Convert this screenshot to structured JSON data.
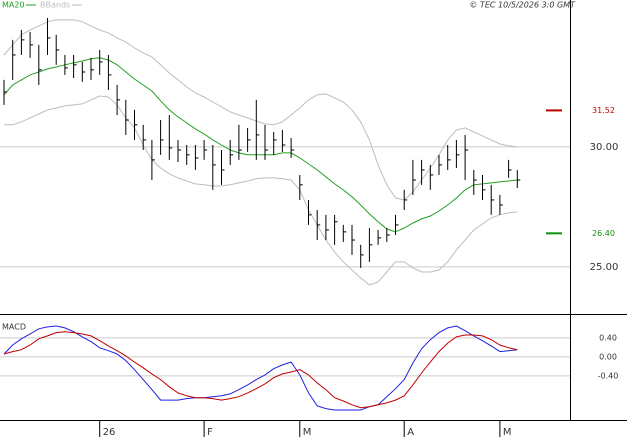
{
  "chart_data": [
    {
      "type": "ohlc",
      "credit": "© TEC 10/5/2026 3:0 GMT",
      "categories": [
        null,
        null,
        null,
        null,
        null,
        null,
        null,
        null,
        null,
        null,
        null,
        "26",
        null,
        null,
        null,
        null,
        null,
        null,
        null,
        null,
        null,
        null,
        null,
        "F",
        null,
        null,
        null,
        null,
        null,
        null,
        null,
        null,
        null,
        null,
        "M",
        null,
        null,
        null,
        null,
        null,
        null,
        null,
        null,
        null,
        null,
        null,
        "A",
        null,
        null,
        null,
        null,
        null,
        null,
        null,
        null,
        null,
        null,
        "M",
        null,
        null
      ],
      "high": [
        32.79,
        34.46,
        34.87,
        34.79,
        34.25,
        35.37,
        34.67,
        33.83,
        33.83,
        33.54,
        33.71,
        34.04,
        33.83,
        32.58,
        31.96,
        31.54,
        30.92,
        30.29,
        31.12,
        31.33,
        30.29,
        30.08,
        30.08,
        30.29,
        30.08,
        29.87,
        30.29,
        30.92,
        30.79,
        31.96,
        30.92,
        30.62,
        30.71,
        30.37,
        28.83,
        27.79,
        27.37,
        27.17,
        27.17,
        26.75,
        26.75,
        25.92,
        26.62,
        26.54,
        26.62,
        27.17,
        28.21,
        29.46,
        29.46,
        29.25,
        29.67,
        30.08,
        30.29,
        30.5,
        29.04,
        28.83,
        28.42,
        28.0,
        29.46,
        29.04
      ],
      "low": [
        31.75,
        32.79,
        33.83,
        33.71,
        32.58,
        33.83,
        33.42,
        33.0,
        32.87,
        32.71,
        32.79,
        33.0,
        32.37,
        31.33,
        30.5,
        30.29,
        29.87,
        28.62,
        29.67,
        29.46,
        29.37,
        29.25,
        29.04,
        29.46,
        28.21,
        28.42,
        29.25,
        29.46,
        29.79,
        29.46,
        29.46,
        29.67,
        29.79,
        29.54,
        27.79,
        26.75,
        26.12,
        26.12,
        25.92,
        26.04,
        25.5,
        24.96,
        25.21,
        25.92,
        26.04,
        26.33,
        27.37,
        28.0,
        28.42,
        28.21,
        28.83,
        29.04,
        29.12,
        28.62,
        28.0,
        27.79,
        27.17,
        27.17,
        28.71,
        28.29
      ],
      "close": [
        32.29,
        33.83,
        34.46,
        34.25,
        33.21,
        34.54,
        34.04,
        33.29,
        33.42,
        33.12,
        33.21,
        33.54,
        33.0,
        31.96,
        31.12,
        30.92,
        30.29,
        29.46,
        30.29,
        29.96,
        29.87,
        29.67,
        29.54,
        29.87,
        29.25,
        29.04,
        29.67,
        29.87,
        30.29,
        30.5,
        29.87,
        30.29,
        30.08,
        29.87,
        28.42,
        27.17,
        26.75,
        26.54,
        26.88,
        26.46,
        26.12,
        25.5,
        25.92,
        26.21,
        26.33,
        26.75,
        27.79,
        28.62,
        29.04,
        28.83,
        29.25,
        29.46,
        29.67,
        29.87,
        28.62,
        28.21,
        27.79,
        27.58,
        29.04,
        28.62
      ],
      "color": "#000000",
      "series": [
        {
          "name": "MA20",
          "color": "#22a022",
          "values": [
            32.17,
            32.58,
            32.79,
            33.0,
            33.12,
            33.25,
            33.33,
            33.42,
            33.5,
            33.58,
            33.67,
            33.71,
            33.62,
            33.42,
            33.12,
            32.83,
            32.58,
            32.33,
            31.92,
            31.54,
            31.25,
            31.0,
            30.75,
            30.54,
            30.29,
            30.08,
            29.87,
            29.75,
            29.67,
            29.67,
            29.67,
            29.67,
            29.75,
            29.75,
            29.54,
            29.29,
            29.04,
            28.75,
            28.46,
            28.21,
            27.92,
            27.58,
            27.21,
            26.88,
            26.58,
            26.46,
            26.62,
            26.83,
            27.0,
            27.12,
            27.33,
            27.58,
            27.87,
            28.21,
            28.42,
            28.46,
            28.5,
            28.54,
            28.58,
            28.62
          ]
        }
      ],
      "bands": {
        "name": "BBands",
        "color": "#bdbdbd",
        "upper": [
          33.83,
          34.25,
          34.67,
          34.87,
          35.04,
          35.21,
          35.29,
          35.29,
          35.29,
          35.21,
          35.04,
          34.87,
          34.75,
          34.54,
          34.37,
          34.12,
          33.92,
          33.75,
          33.42,
          33.08,
          32.79,
          32.5,
          32.25,
          32.08,
          31.87,
          31.67,
          31.46,
          31.33,
          31.21,
          31.08,
          30.96,
          30.92,
          31.04,
          31.33,
          31.62,
          31.96,
          32.17,
          32.21,
          32.04,
          31.87,
          31.54,
          31.04,
          30.29,
          29.25,
          28.42,
          27.87,
          27.79,
          28.12,
          28.62,
          29.12,
          29.67,
          30.29,
          30.71,
          30.79,
          30.62,
          30.46,
          30.29,
          30.12,
          30.04,
          30.0
        ],
        "lower": [
          30.92,
          30.92,
          31.04,
          31.21,
          31.37,
          31.54,
          31.62,
          31.71,
          31.75,
          31.79,
          31.96,
          32.12,
          32.08,
          31.75,
          31.21,
          30.79,
          30.08,
          29.46,
          29.12,
          28.88,
          28.71,
          28.58,
          28.46,
          28.42,
          28.37,
          28.37,
          28.42,
          28.5,
          28.58,
          28.67,
          28.71,
          28.71,
          28.67,
          28.62,
          28.21,
          27.37,
          26.75,
          26.12,
          25.62,
          25.21,
          24.87,
          24.54,
          24.25,
          24.37,
          24.79,
          25.21,
          25.21,
          24.96,
          24.79,
          24.79,
          24.87,
          25.21,
          25.71,
          26.12,
          26.54,
          26.79,
          27.04,
          27.17,
          27.25,
          27.29
        ]
      },
      "annotations": [
        {
          "value": 31.52,
          "label": "31.52",
          "color": "#c00000"
        },
        {
          "value": 26.4,
          "label": "26.40",
          "color": "#109010"
        }
      ],
      "ylim": [
        23.08,
        36.12
      ],
      "yticks": [
        {
          "value": 25,
          "label": "25.00"
        },
        {
          "value": 30,
          "label": "30.00"
        }
      ],
      "grid": true
    },
    {
      "type": "macd",
      "title": "MACD",
      "series": [
        {
          "color": "#2020e0",
          "values": [
            0.06,
            0.25,
            0.38,
            0.48,
            0.59,
            0.63,
            0.65,
            0.61,
            0.53,
            0.42,
            0.32,
            0.19,
            0.13,
            0.06,
            -0.08,
            -0.27,
            -0.48,
            -0.69,
            -0.91,
            -0.91,
            -0.91,
            -0.88,
            -0.86,
            -0.86,
            -0.84,
            -0.82,
            -0.78,
            -0.69,
            -0.59,
            -0.48,
            -0.38,
            -0.25,
            -0.17,
            -0.11,
            -0.38,
            -0.76,
            -1.03,
            -1.09,
            -1.12,
            -1.12,
            -1.12,
            -1.12,
            -1.05,
            -1.01,
            -0.84,
            -0.67,
            -0.48,
            -0.13,
            0.17,
            0.36,
            0.51,
            0.61,
            0.65,
            0.55,
            0.44,
            0.34,
            0.23,
            0.11,
            0.13,
            0.15
          ]
        },
        {
          "color": "#c00000",
          "values": [
            0.06,
            0.11,
            0.15,
            0.25,
            0.38,
            0.44,
            0.51,
            0.53,
            0.51,
            0.48,
            0.44,
            0.34,
            0.23,
            0.13,
            0.02,
            -0.11,
            -0.23,
            -0.36,
            -0.48,
            -0.63,
            -0.76,
            -0.82,
            -0.86,
            -0.86,
            -0.88,
            -0.91,
            -0.88,
            -0.84,
            -0.76,
            -0.67,
            -0.57,
            -0.44,
            -0.36,
            -0.32,
            -0.27,
            -0.38,
            -0.55,
            -0.69,
            -0.86,
            -0.93,
            -1.01,
            -1.07,
            -1.05,
            -1.01,
            -0.97,
            -0.91,
            -0.82,
            -0.59,
            -0.34,
            -0.11,
            0.11,
            0.29,
            0.42,
            0.46,
            0.46,
            0.44,
            0.36,
            0.25,
            0.19,
            0.15
          ]
        }
      ],
      "ylim": [
        -1.33,
        0.86
      ],
      "yticks": [
        {
          "value": 0.4,
          "label": "0.40"
        },
        {
          "value": 0,
          "label": "0.00"
        },
        {
          "value": -0.4,
          "label": "-0.40"
        }
      ],
      "grid": true
    }
  ]
}
